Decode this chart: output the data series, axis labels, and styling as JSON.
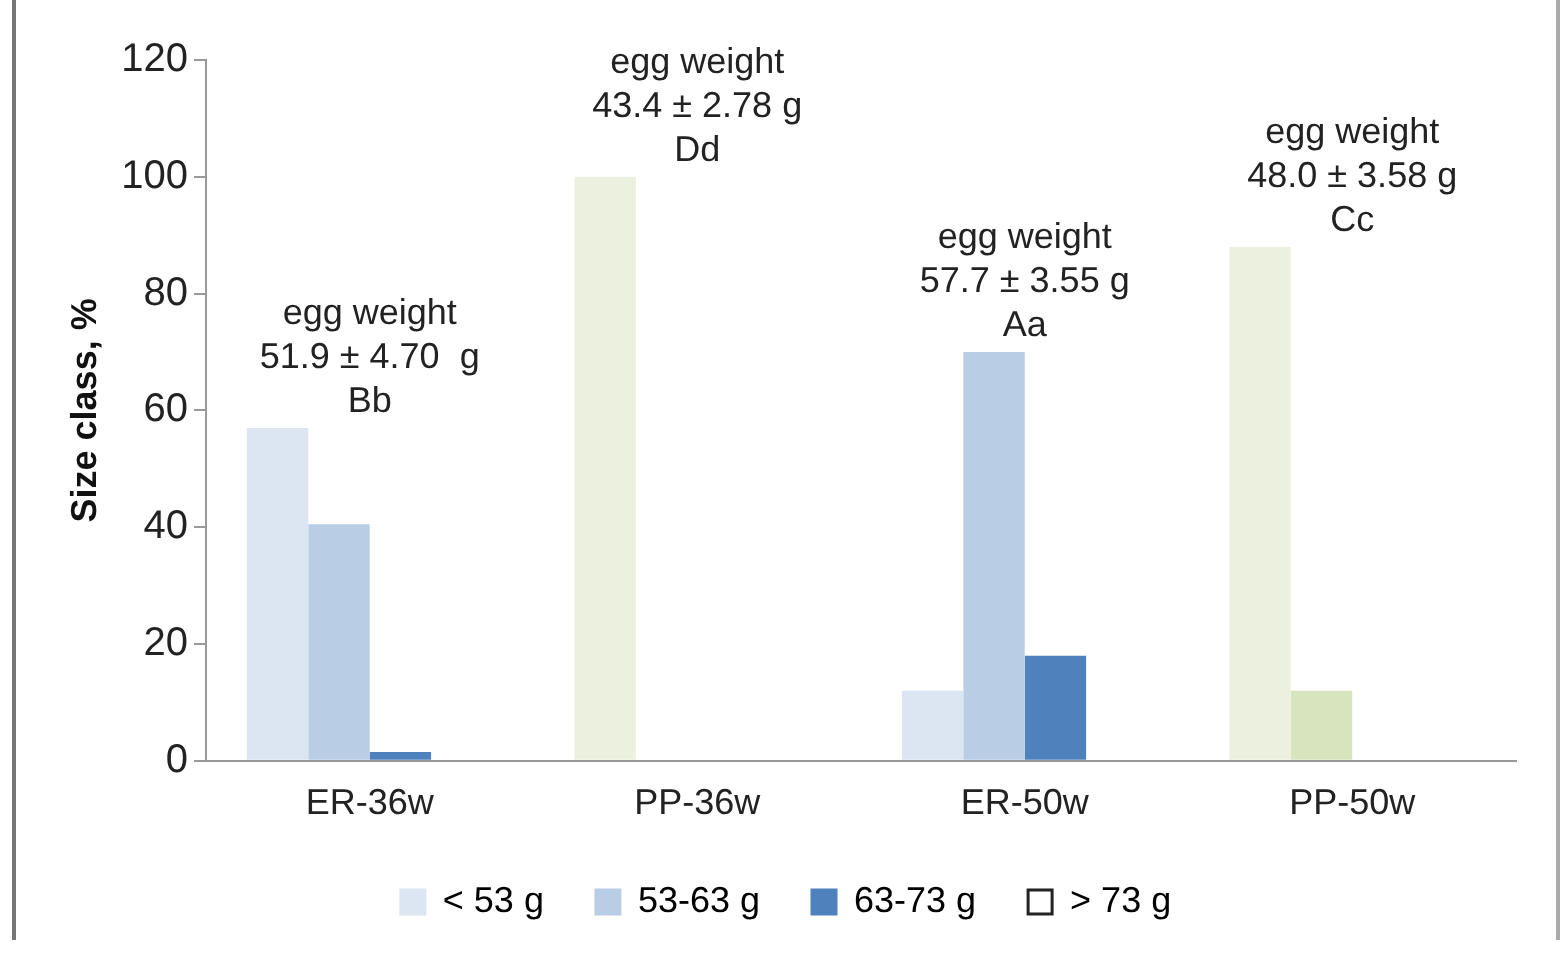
{
  "chart_data": {
    "type": "bar",
    "ylabel": "Size class, %",
    "categories": [
      "ER-36w",
      "PP-36w",
      "ER-50w",
      "PP-50w"
    ],
    "series": [
      {
        "name": "< 53 g",
        "color": "#dce6f2",
        "colors": [
          "#dce6f2",
          "#ebf1de",
          "#dce6f2",
          "#ebf1de"
        ],
        "values": [
          57,
          100,
          12,
          88
        ]
      },
      {
        "name": "53-63 g",
        "color": "#b9cde5",
        "colors": [
          "#b9cde5",
          "#d7e4bd",
          "#b9cde5",
          "#d7e4bd"
        ],
        "values": [
          40.5,
          0,
          70,
          12
        ]
      },
      {
        "name": "63-73 g",
        "color": "#4f81bd",
        "colors": [
          "#4f81bd",
          "#9bbb59",
          "#4f81bd",
          "#9bbb59"
        ],
        "values": [
          1.5,
          0,
          18,
          0
        ]
      },
      {
        "name": "> 73 g",
        "color": "#ffffff",
        "colors": [
          "#ffffff",
          "#ffffff",
          "#ffffff",
          "#ffffff"
        ],
        "values": [
          0,
          0,
          0,
          0
        ]
      }
    ],
    "ylim": [
      0,
      120
    ],
    "yticks": [
      0,
      20,
      40,
      60,
      80,
      100,
      120
    ],
    "grid": false,
    "legend": "bottom",
    "annotations": [
      "egg weight\n51.9 ± 4.70  g\nBb",
      "egg weight\n43.4 ± 2.78 g\nDd",
      "egg weight\n57.7 ± 3.55 g\nAa",
      "egg weight\n48.0 ± 3.58 g\nCc"
    ]
  }
}
